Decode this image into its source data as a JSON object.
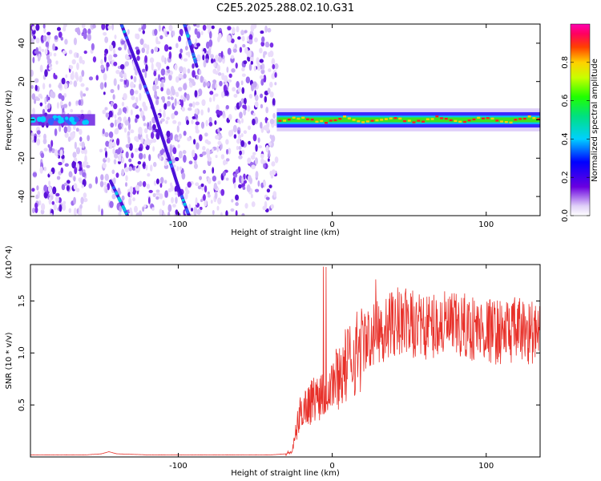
{
  "figure": {
    "title": "C2E5.2025.288.02.10.G31"
  },
  "chart_data": [
    {
      "type": "heatmap",
      "xlabel": "Height of straight line (km)",
      "ylabel": "Frequency (Hz)",
      "xlim": [
        -196,
        135
      ],
      "ylim": [
        -50,
        50
      ],
      "xticks": [
        -100,
        0,
        100
      ],
      "yticks": [
        -40,
        -20,
        0,
        20,
        40
      ],
      "colorbar": {
        "label": "Normalized spectral amplitude",
        "range": [
          0,
          1
        ],
        "ticks": [
          0.0,
          0.2,
          0.4,
          0.6,
          0.8
        ]
      },
      "features": [
        {
          "name": "noise region",
          "x_range": [
            -196,
            -36
          ]
        },
        {
          "name": "signal band",
          "x_range": [
            -36,
            135
          ],
          "frequency": 0
        }
      ]
    },
    {
      "type": "line",
      "xlabel": "Height of straight line (km)",
      "ylabel": "SNR (10 * v/v)",
      "scale_label": "(x10^4)",
      "xlim": [
        -196,
        135
      ],
      "ylim": [
        0,
        1.85
      ],
      "xticks": [
        -100,
        0,
        100
      ],
      "yticks": [
        0.5,
        1.0,
        1.5
      ],
      "series": [
        {
          "name": "SNR",
          "color": "#e8312a",
          "x": [
            -196,
            -180,
            -160,
            -150,
            -145,
            -140,
            -120,
            -100,
            -80,
            -60,
            -40,
            -30,
            -26,
            -24,
            -22,
            -20,
            -15,
            -10,
            -5,
            0,
            5,
            10,
            15,
            20,
            25,
            30,
            35,
            40,
            45,
            50,
            60,
            70,
            80,
            90,
            100,
            110,
            120,
            130,
            135
          ],
          "y": [
            0.02,
            0.02,
            0.02,
            0.03,
            0.05,
            0.03,
            0.02,
            0.02,
            0.02,
            0.02,
            0.02,
            0.03,
            0.05,
            0.2,
            0.35,
            0.45,
            0.52,
            0.58,
            0.65,
            0.72,
            0.8,
            0.9,
            1.0,
            1.08,
            1.15,
            1.2,
            1.22,
            1.28,
            1.3,
            1.28,
            1.25,
            1.27,
            1.25,
            1.24,
            1.22,
            1.2,
            1.22,
            1.2,
            1.15
          ]
        }
      ]
    }
  ]
}
